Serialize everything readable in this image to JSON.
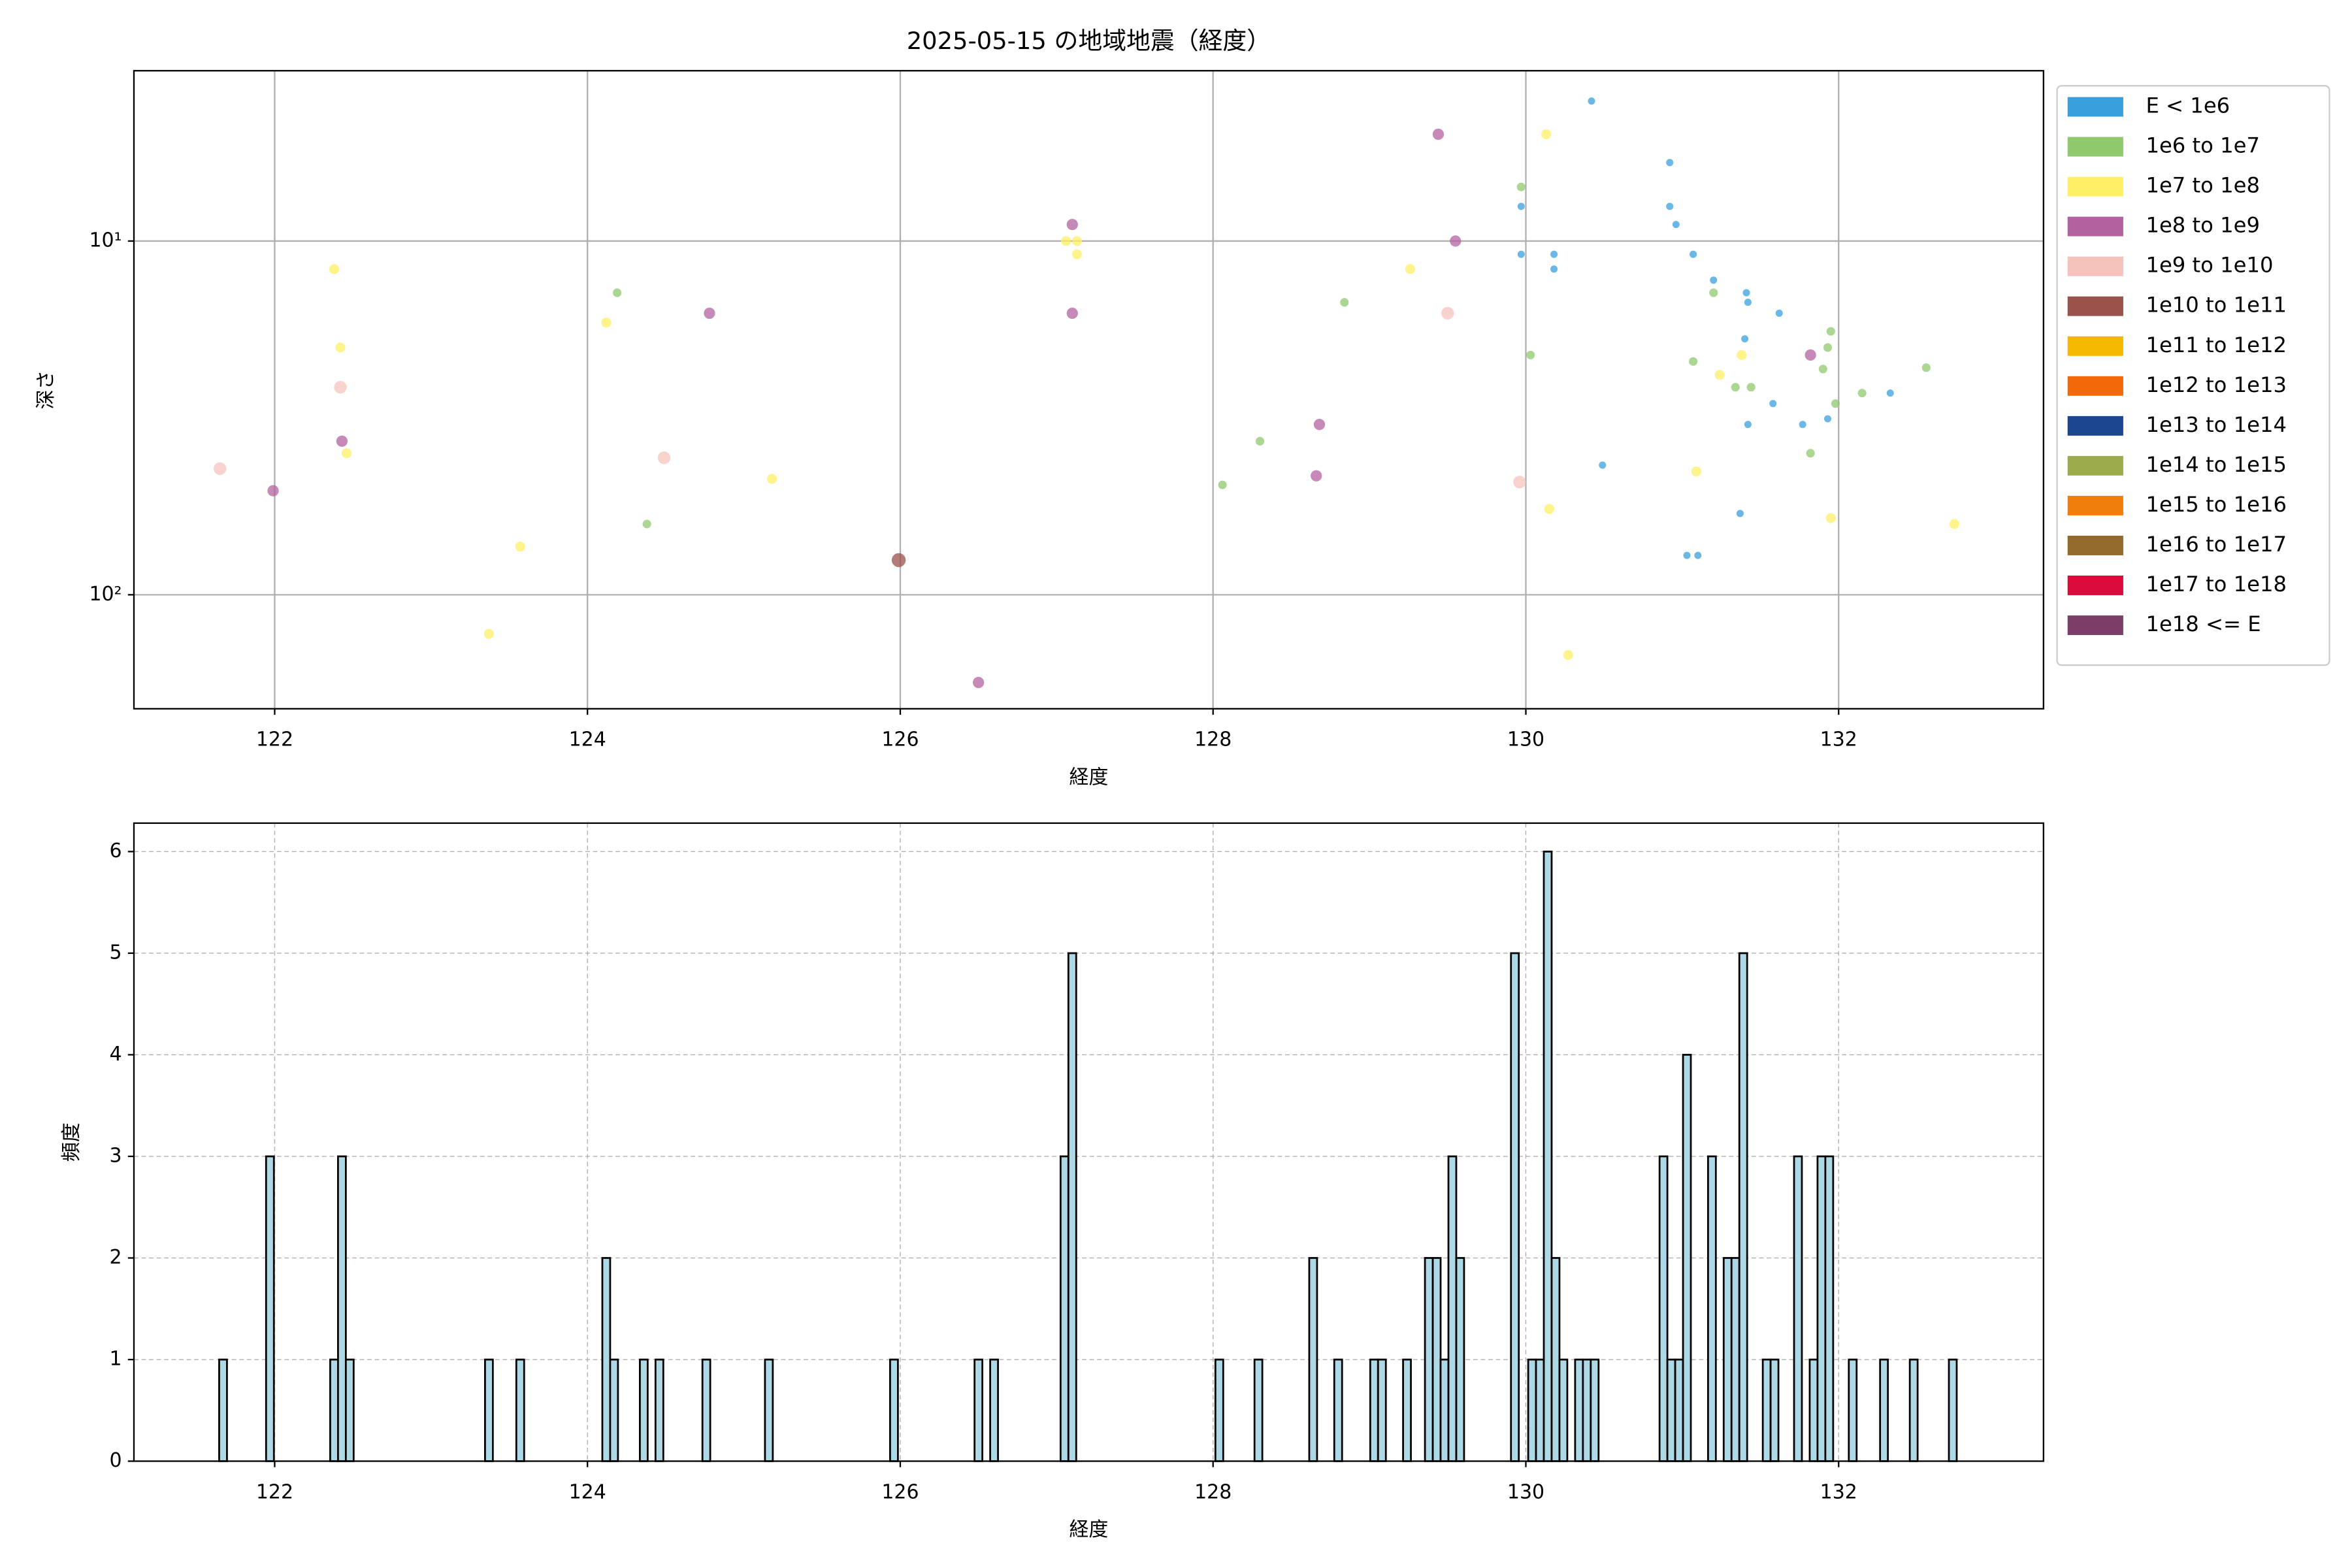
{
  "chart_data": [
    {
      "type": "scatter",
      "title": "2025-05-15 の地域地震（経度）",
      "x_label": "経度",
      "y_label": "深さ",
      "xlim": [
        121.1,
        133.31
      ],
      "xticks": [
        122,
        124,
        126,
        128,
        130,
        132
      ],
      "ylim": [
        210,
        3.3
      ],
      "yscale": "log",
      "yticks": [
        {
          "value": 10,
          "label": "10¹"
        },
        {
          "value": 100,
          "label": "10²"
        }
      ],
      "grid": true,
      "grid_style": "solid",
      "legend": "outside upper right",
      "series": [
        {
          "name": "E < 1e6",
          "color": "#3a9fdd",
          "x": [
            130.42,
            130.92,
            130.92,
            130.96,
            129.97,
            129.97,
            130.18,
            130.18,
            131.07,
            131.2,
            131.41,
            131.42,
            131.62,
            131.4,
            131.58,
            131.77,
            131.93,
            131.42,
            132.33,
            130.49,
            131.37,
            131.03,
            131.1
          ],
          "values": [
            4.02,
            6.0,
            7.98,
            8.98,
            7.98,
            10.9,
            10.9,
            12.0,
            10.9,
            12.9,
            14.0,
            14.9,
            16.0,
            18.9,
            28.8,
            33.0,
            31.8,
            33.0,
            26.9,
            43.0,
            58.9,
            77.4,
            77.4
          ]
        },
        {
          "name": "1e6 to 1e7",
          "color": "#8fca6f",
          "x": [
            129.97,
            131.2,
            130.03,
            131.07,
            131.34,
            131.44,
            131.95,
            131.93,
            131.9,
            132.15,
            131.98,
            132.56,
            131.82,
            128.84,
            128.3,
            128.06,
            124.19,
            124.38
          ],
          "values": [
            7.03,
            14.0,
            21.0,
            21.9,
            25.9,
            25.9,
            18.0,
            20.0,
            23.0,
            26.9,
            28.8,
            22.8,
            39.8,
            14.9,
            36.8,
            48.9,
            14.0,
            63.1
          ]
        },
        {
          "name": "1e7 to 1e8",
          "color": "#fff066",
          "x": [
            130.13,
            129.26,
            127.06,
            127.13,
            127.13,
            122.38,
            122.42,
            122.46,
            124.12,
            125.18,
            123.57,
            123.37,
            130.15,
            130.27,
            131.09,
            131.24,
            131.38,
            131.95,
            132.74
          ],
          "values": [
            4.99,
            12.0,
            10.0,
            10.0,
            10.9,
            12.0,
            20.0,
            39.8,
            17.0,
            47.0,
            73.1,
            129,
            57.2,
            148,
            44.8,
            23.9,
            21.0,
            60.7,
            63.1
          ]
        },
        {
          "name": "1e8 to 1e9",
          "color": "#b4619f",
          "x": [
            129.44,
            127.1,
            129.55,
            127.1,
            124.78,
            122.43,
            121.99,
            128.68,
            128.66,
            131.82,
            126.5
          ],
          "values": [
            4.99,
            8.98,
            10.0,
            16.0,
            16.0,
            36.8,
            50.8,
            33.0,
            46.1,
            21.0,
            177
          ]
        },
        {
          "name": "1e9 to 1e10",
          "color": "#f6c3bc",
          "x": [
            129.5,
            122.42,
            121.65,
            124.49,
            129.96
          ],
          "values": [
            16.0,
            25.9,
            44.0,
            41.0,
            48.0
          ]
        },
        {
          "name": "1e10 to 1e11",
          "color": "#9a524a",
          "x": [
            125.99
          ],
          "values": [
            79.8
          ]
        },
        {
          "name": "1e11 to 1e12",
          "color": "#f6b700",
          "x": [],
          "values": []
        },
        {
          "name": "1e12 to 1e13",
          "color": "#f06a0a",
          "x": [],
          "values": []
        },
        {
          "name": "1e13 to 1e14",
          "color": "#1c4790",
          "x": [],
          "values": []
        },
        {
          "name": "1e14 to 1e15",
          "color": "#9cac4b",
          "x": [],
          "values": []
        },
        {
          "name": "1e15 to 1e16",
          "color": "#f07e0a",
          "x": [],
          "values": []
        },
        {
          "name": "1e16 to 1e17",
          "color": "#946a2c",
          "x": [],
          "values": []
        },
        {
          "name": "1e17 to 1e18",
          "color": "#da0a3b",
          "x": [],
          "values": []
        },
        {
          "name": "1e18 <= E",
          "color": "#7c3f6a",
          "x": [],
          "values": []
        }
      ]
    },
    {
      "type": "histogram",
      "x_label": "経度",
      "y_label": "頻度",
      "xlim": [
        121.1,
        133.31
      ],
      "xticks": [
        122,
        124,
        126,
        128,
        130,
        132
      ],
      "ylim": [
        0,
        6.28
      ],
      "yticks": [
        0,
        1,
        2,
        3,
        4,
        5,
        6
      ],
      "grid": true,
      "grid_style": "dashed",
      "color": "#add8e6",
      "edgecolor": "#000000",
      "bins": [
        121.645,
        121.695,
        121.945,
        121.995,
        122.355,
        122.405,
        122.455,
        122.505,
        123.345,
        123.395,
        123.545,
        123.595,
        124.095,
        124.145,
        124.195,
        124.335,
        124.385,
        124.435,
        124.485,
        124.735,
        124.785,
        125.135,
        125.185,
        125.935,
        125.985,
        126.475,
        126.525,
        126.575,
        126.625,
        127.025,
        127.075,
        127.125,
        128.015,
        128.065,
        128.265,
        128.315,
        128.615,
        128.665,
        128.775,
        128.825,
        129.005,
        129.055,
        129.105,
        129.215,
        129.265,
        129.355,
        129.405,
        129.455,
        129.505,
        129.555,
        129.605,
        129.905,
        129.955,
        130.015,
        130.065,
        130.115,
        130.165,
        130.215,
        130.265,
        130.315,
        130.365,
        130.415,
        130.465,
        130.855,
        130.905,
        130.955,
        131.005,
        131.055,
        131.165,
        131.215,
        131.265,
        131.315,
        131.365,
        131.415,
        131.515,
        131.565,
        131.615,
        131.715,
        131.765,
        131.815,
        131.865,
        131.915,
        131.965,
        132.065,
        132.115,
        132.265,
        132.315,
        132.455,
        132.505,
        132.705,
        132.755
      ],
      "counts": [
        1,
        0,
        3,
        0,
        1,
        3,
        1,
        0,
        1,
        0,
        1,
        0,
        2,
        1,
        0,
        1,
        0,
        1,
        0,
        1,
        0,
        1,
        0,
        1,
        0,
        1,
        0,
        1,
        0,
        3,
        5,
        0,
        1,
        0,
        1,
        0,
        2,
        0,
        1,
        0,
        1,
        1,
        0,
        1,
        0,
        2,
        2,
        1,
        3,
        2,
        0,
        5,
        0,
        1,
        1,
        6,
        2,
        1,
        0,
        1,
        1,
        1,
        0,
        3,
        1,
        1,
        4,
        0,
        3,
        0,
        2,
        2,
        5,
        0,
        1,
        1,
        0,
        3,
        0,
        1,
        3,
        3,
        0,
        1,
        0,
        1,
        0,
        1,
        0,
        1
      ]
    }
  ]
}
